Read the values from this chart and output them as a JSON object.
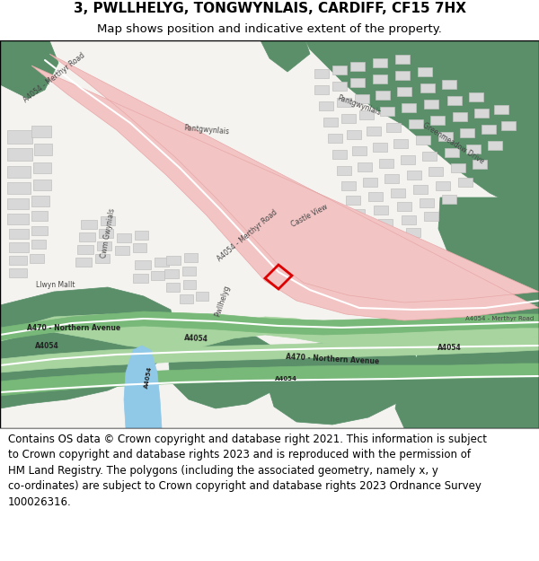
{
  "title": "3, PWLLHELYG, TONGWYNLAIS, CARDIFF, CF15 7HX",
  "subtitle": "Map shows position and indicative extent of the property.",
  "footer_text": "Contains OS data © Crown copyright and database right 2021. This information is subject\nto Crown copyright and database rights 2023 and is reproduced with the permission of\nHM Land Registry. The polygons (including the associated geometry, namely x, y\nco-ordinates) are subject to Crown copyright and database rights 2023 Ordnance Survey\n100026316.",
  "title_fontsize": 11,
  "subtitle_fontsize": 9.5,
  "footer_fontsize": 8.5,
  "bg_color": "#ffffff",
  "map_bg": "#f5f3f0",
  "green_dark": "#5a8f6a",
  "green_mid": "#7ab87a",
  "green_light": "#b0d8b0",
  "road_pink": "#f2c4c4",
  "road_pink_dark": "#e8a8a8",
  "road_green": "#a8d4a0",
  "road_green_dark": "#78b878",
  "building_fill": "#d8d8d8",
  "building_edge": "#c0c0c0",
  "water_blue": "#90c8e8",
  "red_outline": "#dd0000",
  "white": "#ffffff",
  "border_color": "#000000"
}
